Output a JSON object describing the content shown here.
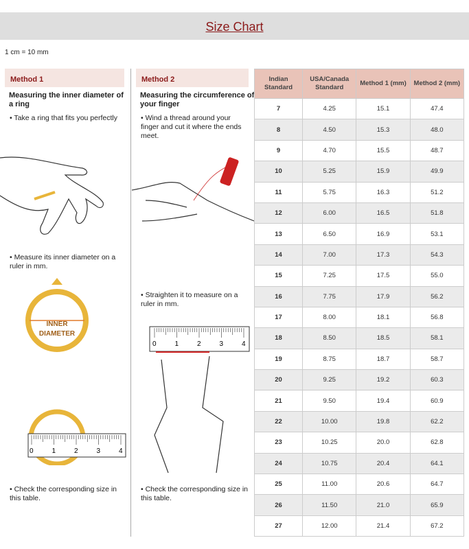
{
  "title": "Size Chart",
  "note": "1 cm = 10 mm",
  "method1": {
    "heading": "Method 1",
    "subtitle": "Measuring the inner diameter of a ring",
    "step1": "• Take a ring that fits you perfectly",
    "step2": "• Measure its inner diameter on a ruler in mm.",
    "step3": "• Check the corresponding size in this table.",
    "ring_label_1": "INNER",
    "ring_label_2": "DIAMETER"
  },
  "method2": {
    "heading": "Method 2",
    "subtitle": "Measuring the circumference of your finger",
    "step1": "• Wind a thread around your finger and cut it where the ends meet.",
    "step2": "• Straighten it to measure on a ruler in mm.",
    "step3": "• Check the corresponding size in this table."
  },
  "ruler_labels": [
    "0",
    "1",
    "2",
    "3",
    "4"
  ],
  "table": {
    "headers": [
      "Indian Standard",
      "USA/Canada Standard",
      "Method 1 (mm)",
      "Method 2 (mm)"
    ],
    "rows": [
      [
        "7",
        "4.25",
        "15.1",
        "47.4"
      ],
      [
        "8",
        "4.50",
        "15.3",
        "48.0"
      ],
      [
        "9",
        "4.70",
        "15.5",
        "48.7"
      ],
      [
        "10",
        "5.25",
        "15.9",
        "49.9"
      ],
      [
        "11",
        "5.75",
        "16.3",
        "51.2"
      ],
      [
        "12",
        "6.00",
        "16.5",
        "51.8"
      ],
      [
        "13",
        "6.50",
        "16.9",
        "53.1"
      ],
      [
        "14",
        "7.00",
        "17.3",
        "54.3"
      ],
      [
        "15",
        "7.25",
        "17.5",
        "55.0"
      ],
      [
        "16",
        "7.75",
        "17.9",
        "56.2"
      ],
      [
        "17",
        "8.00",
        "18.1",
        "56.8"
      ],
      [
        "18",
        "8.50",
        "18.5",
        "58.1"
      ],
      [
        "19",
        "8.75",
        "18.7",
        "58.7"
      ],
      [
        "20",
        "9.25",
        "19.2",
        "60.3"
      ],
      [
        "21",
        "9.50",
        "19.4",
        "60.9"
      ],
      [
        "22",
        "10.00",
        "19.8",
        "62.2"
      ],
      [
        "23",
        "10.25",
        "20.0",
        "62.8"
      ],
      [
        "24",
        "10.75",
        "20.4",
        "64.1"
      ],
      [
        "25",
        "11.00",
        "20.6",
        "64.7"
      ],
      [
        "26",
        "11.50",
        "21.0",
        "65.9"
      ],
      [
        "27",
        "12.00",
        "21.4",
        "67.2"
      ]
    ]
  },
  "colors": {
    "accent": "#8b1a1a",
    "header_bg": "#e9c3b8",
    "method_bg": "#f5e5e1",
    "gold": "#e8b53a",
    "thread": "#cc2222"
  }
}
